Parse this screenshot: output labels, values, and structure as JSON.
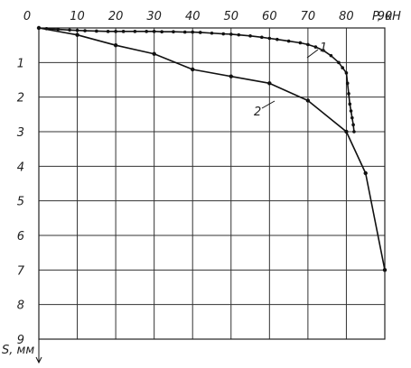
{
  "chart_data": {
    "type": "line",
    "xlabel": "P, кН",
    "ylabel": "S, мм",
    "x_ticks": [
      "0",
      "10",
      "20",
      "30",
      "40",
      "50",
      "60",
      "70",
      "80",
      "90"
    ],
    "y_ticks": [
      "1",
      "2",
      "3",
      "4",
      "5",
      "6",
      "7",
      "8",
      "9"
    ],
    "xlim": [
      0,
      90
    ],
    "ylim": [
      0,
      9
    ],
    "y_inverted": true,
    "x_axis_position": "top",
    "grid": true,
    "series": [
      {
        "name": "1",
        "x": [
          0,
          2,
          5,
          8,
          10,
          12,
          15,
          18,
          20,
          22,
          25,
          28,
          30,
          32,
          35,
          38,
          40,
          42,
          45,
          48,
          50,
          52,
          55,
          58,
          60,
          62,
          65,
          68,
          70,
          72,
          74,
          76,
          78,
          79,
          80,
          80.3,
          80.6,
          80.9,
          81.2,
          81.5,
          81.8,
          82
        ],
        "y": [
          0,
          0.02,
          0.04,
          0.06,
          0.07,
          0.08,
          0.09,
          0.1,
          0.1,
          0.1,
          0.1,
          0.1,
          0.1,
          0.11,
          0.11,
          0.12,
          0.12,
          0.13,
          0.15,
          0.17,
          0.18,
          0.2,
          0.23,
          0.27,
          0.3,
          0.33,
          0.38,
          0.43,
          0.48,
          0.55,
          0.65,
          0.8,
          1.0,
          1.15,
          1.3,
          1.6,
          1.9,
          2.2,
          2.4,
          2.6,
          2.8,
          3.0
        ]
      },
      {
        "name": "2",
        "x": [
          0,
          10,
          20,
          30,
          40,
          50,
          60,
          70,
          80,
          85,
          90
        ],
        "y": [
          0,
          0.2,
          0.5,
          0.75,
          1.2,
          1.4,
          1.6,
          2.1,
          3.0,
          4.2,
          7.0
        ]
      }
    ]
  }
}
